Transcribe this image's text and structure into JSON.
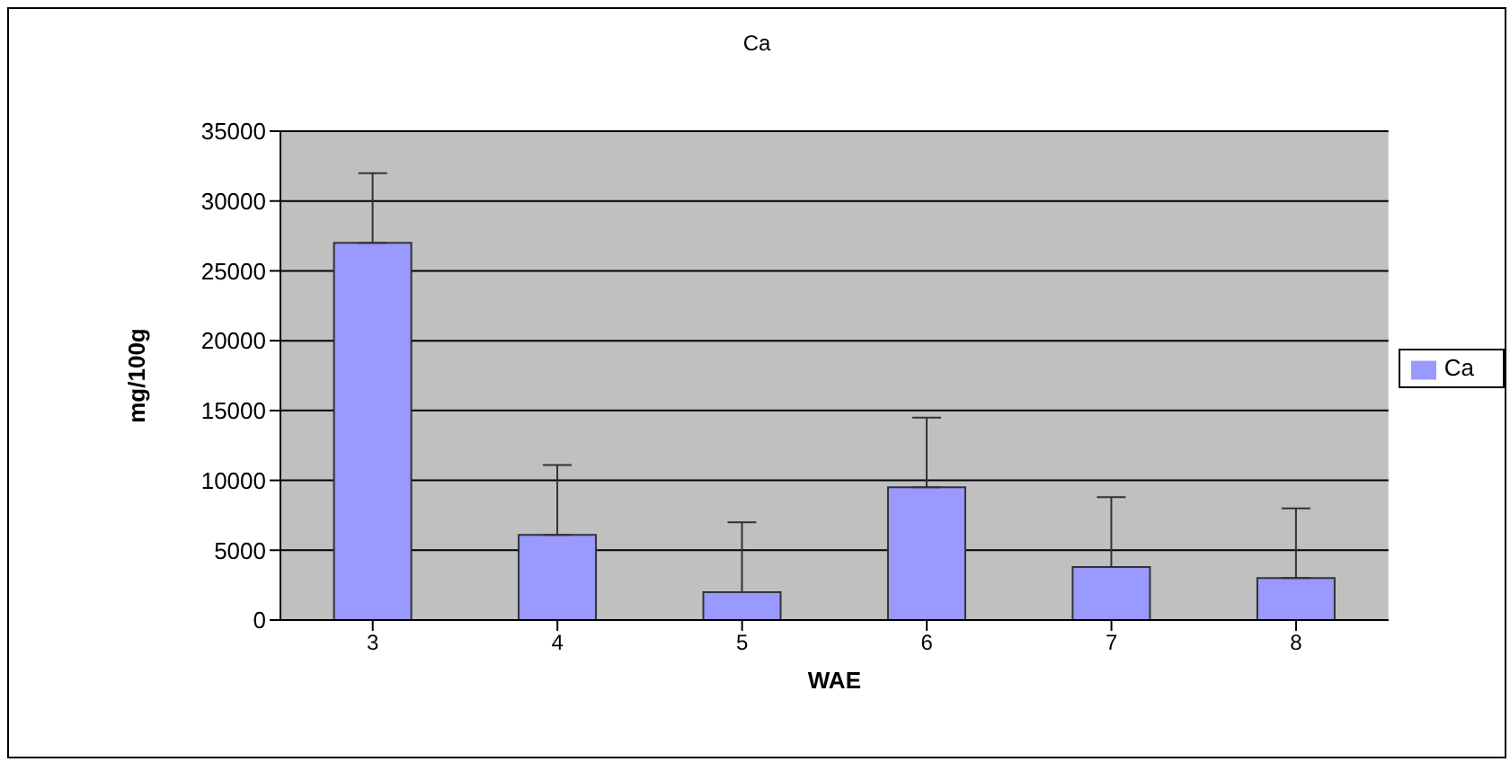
{
  "chart_data": {
    "type": "bar",
    "title": "Ca",
    "xlabel": "WAE",
    "ylabel": "mg/100g",
    "categories": [
      "3",
      "4",
      "5",
      "6",
      "7",
      "8"
    ],
    "series": [
      {
        "name": "Ca",
        "color": "#9999ff",
        "values": [
          27000,
          6100,
          2000,
          9500,
          3800,
          3000
        ],
        "errors": [
          [
            27000,
            32000
          ],
          [
            6100,
            11100
          ],
          [
            2000,
            7000
          ],
          [
            9500,
            14500
          ],
          [
            3800,
            8800
          ],
          [
            3000,
            8000
          ]
        ]
      }
    ],
    "ylim": [
      0,
      35000
    ],
    "yticks": [
      0,
      5000,
      10000,
      15000,
      20000,
      25000,
      30000,
      35000
    ],
    "grid": "y",
    "legend": "right"
  }
}
